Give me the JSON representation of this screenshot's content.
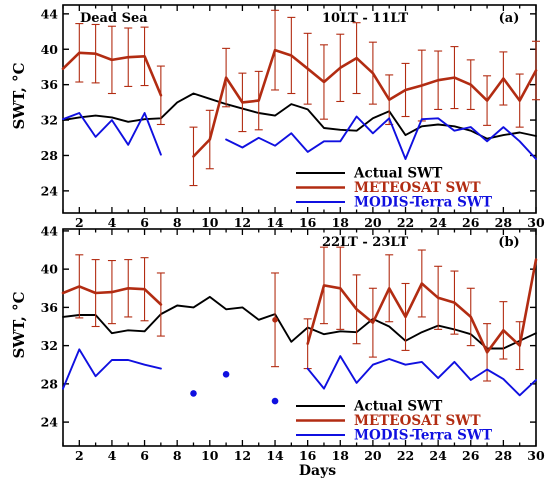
{
  "chart_data": [
    {
      "type": "line",
      "panel_label": "(a)",
      "location": "Dead Sea",
      "time_label": "10LT - 11LT",
      "xlabel": "",
      "ylabel": "SWT, °C",
      "xlim": [
        1,
        30
      ],
      "ylim": [
        21.5,
        45
      ],
      "xticks": [
        2,
        4,
        6,
        8,
        10,
        12,
        14,
        16,
        18,
        20,
        22,
        24,
        26,
        28,
        30
      ],
      "yticks": [
        24,
        28,
        32,
        36,
        40,
        44
      ],
      "legend_position": "bottom-right",
      "series": [
        {
          "name": "Actual SWT",
          "color": "#000000",
          "style": "line",
          "x": [
            1,
            2,
            3,
            4,
            5,
            6,
            7,
            8,
            9,
            10,
            11,
            12,
            13,
            14,
            15,
            16,
            17,
            18,
            19,
            20,
            21,
            22,
            23,
            24,
            25,
            26,
            27,
            28,
            29,
            30
          ],
          "values": [
            32.0,
            32.3,
            32.5,
            32.3,
            31.8,
            32.1,
            32.2,
            34.0,
            35.0,
            34.4,
            33.8,
            33.3,
            32.8,
            32.5,
            33.8,
            33.2,
            31.1,
            30.9,
            30.8,
            32.2,
            33.0,
            30.3,
            31.3,
            31.5,
            31.3,
            30.8,
            29.9,
            30.3,
            30.6,
            30.2
          ]
        },
        {
          "name": "METEOSAT SWT",
          "color": "#b22c12",
          "style": "line_errorbar",
          "segments": [
            {
              "x": [
                1,
                2,
                3,
                4,
                5,
                6,
                7
              ],
              "values": [
                37.8,
                39.6,
                39.5,
                38.8,
                39.1,
                39.2,
                34.8
              ],
              "errors": [
                null,
                3.3,
                3.3,
                3.8,
                3.3,
                3.3,
                3.3
              ]
            },
            {
              "x": [
                9,
                10,
                11,
                12,
                13,
                14,
                15,
                16,
                17,
                18,
                19,
                20,
                21,
                22,
                23,
                24,
                25,
                26,
                27,
                28,
                29,
                30
              ],
              "values": [
                27.9,
                29.8,
                36.8,
                34.0,
                34.2,
                39.9,
                39.3,
                37.8,
                36.3,
                37.9,
                39.0,
                37.3,
                34.3,
                35.4,
                35.9,
                36.5,
                36.8,
                36.0,
                34.2,
                36.7,
                34.2,
                37.6
              ],
              "errors": [
                3.3,
                3.3,
                3.3,
                3.3,
                3.3,
                4.5,
                4.3,
                4.0,
                4.2,
                3.8,
                4.0,
                3.5,
                2.8,
                3.0,
                4.0,
                3.3,
                3.5,
                2.8,
                2.8,
                3.0,
                3.0,
                3.3
              ]
            }
          ]
        },
        {
          "name": "MODIS-Terra SWT",
          "color": "#1010e0",
          "style": "line",
          "segments": [
            {
              "x": [
                1,
                2,
                3,
                4,
                5,
                6,
                7
              ],
              "values": [
                32.1,
                32.8,
                30.1,
                32.0,
                29.2,
                32.8,
                28.1
              ]
            },
            {
              "x": [
                11,
                12,
                13,
                14,
                15,
                16,
                17,
                18,
                19,
                20,
                21,
                22,
                23,
                24,
                25,
                26,
                27,
                28,
                29,
                30
              ],
              "values": [
                29.8,
                28.9,
                30.0,
                29.1,
                30.5,
                28.4,
                29.6,
                29.6,
                32.4,
                30.5,
                32.2,
                27.6,
                32.1,
                32.2,
                30.8,
                31.2,
                29.6,
                31.2,
                29.6,
                27.6
              ]
            }
          ]
        }
      ]
    },
    {
      "type": "line",
      "panel_label": "(b)",
      "location": "",
      "time_label": "22LT - 23LT",
      "xlabel": "Days",
      "ylabel": "SWT, °C",
      "xlim": [
        1,
        30
      ],
      "ylim": [
        21.5,
        44.2
      ],
      "xticks": [
        2,
        4,
        6,
        8,
        10,
        12,
        14,
        16,
        18,
        20,
        22,
        24,
        26,
        28,
        30
      ],
      "yticks": [
        24,
        28,
        32,
        36,
        40,
        44
      ],
      "legend_position": "bottom-right",
      "series": [
        {
          "name": "Actual SWT",
          "color": "#000000",
          "style": "line",
          "x": [
            1,
            2,
            3,
            4,
            5,
            6,
            7,
            8,
            9,
            10,
            11,
            12,
            13,
            14,
            15,
            16,
            17,
            18,
            19,
            20,
            21,
            22,
            23,
            24,
            25,
            26,
            27,
            28,
            29,
            30
          ],
          "values": [
            35.0,
            35.2,
            35.2,
            33.3,
            33.6,
            33.5,
            35.3,
            36.2,
            36.0,
            37.1,
            35.8,
            36.0,
            34.7,
            35.3,
            32.4,
            33.9,
            33.2,
            33.5,
            33.4,
            34.8,
            34.0,
            32.5,
            33.4,
            34.1,
            33.7,
            33.2,
            31.7,
            31.7,
            32.5,
            33.3
          ]
        },
        {
          "name": "METEOSAT SWT",
          "color": "#b22c12",
          "style": "line_errorbar",
          "segments": [
            {
              "x": [
                1,
                2,
                3,
                4,
                5,
                6,
                7
              ],
              "values": [
                37.5,
                38.2,
                37.5,
                37.6,
                38.0,
                37.9,
                36.3
              ],
              "errors": [
                null,
                3.3,
                3.5,
                3.3,
                3.0,
                3.3,
                3.3
              ]
            },
            {
              "x": [
                14
              ],
              "values": [
                34.7
              ],
              "errors": [
                4.9
              ]
            },
            {
              "x": [
                16,
                17,
                18,
                19,
                20,
                21,
                22,
                23,
                24,
                25,
                26,
                27,
                28,
                29,
                30
              ],
              "values": [
                32.2,
                38.3,
                38.0,
                35.8,
                34.4,
                38.0,
                35.0,
                38.5,
                37.0,
                36.5,
                35.0,
                31.3,
                33.6,
                32.0,
                41.0
              ],
              "errors": [
                2.6,
                4.0,
                4.3,
                3.6,
                3.6,
                3.5,
                3.5,
                3.5,
                3.3,
                3.3,
                3.0,
                3.0,
                3.0,
                2.5,
                null
              ]
            }
          ]
        },
        {
          "name": "MODIS-Terra SWT",
          "color": "#1010e0",
          "style": "line",
          "segments": [
            {
              "x": [
                1,
                2,
                3,
                4,
                5,
                6,
                7
              ],
              "values": [
                27.5,
                31.6,
                28.8,
                30.5,
                30.5,
                30.0,
                29.6
              ]
            },
            {
              "x": [
                9
              ],
              "values": [
                27.0
              ],
              "marker": "dot"
            },
            {
              "x": [
                11
              ],
              "values": [
                29.0
              ],
              "marker": "dot"
            },
            {
              "x": [
                14
              ],
              "values": [
                26.2
              ],
              "marker": "dot"
            },
            {
              "x": [
                16,
                17,
                18,
                19,
                20,
                21,
                22,
                23,
                24,
                25,
                26,
                27,
                28,
                29,
                30
              ],
              "values": [
                29.6,
                27.5,
                30.9,
                28.1,
                30.0,
                30.6,
                30.0,
                30.3,
                28.6,
                30.3,
                28.4,
                29.5,
                28.5,
                26.8,
                28.4
              ]
            }
          ]
        }
      ]
    }
  ]
}
